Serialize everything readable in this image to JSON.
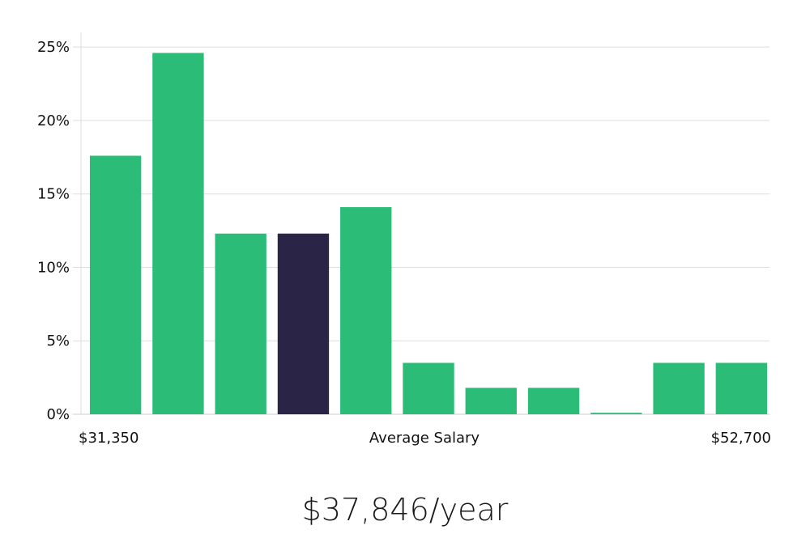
{
  "chart_data": {
    "type": "bar",
    "values": [
      17.6,
      24.6,
      12.3,
      12.3,
      14.1,
      3.5,
      1.8,
      1.8,
      0.1,
      3.5,
      3.5
    ],
    "highlight_index": 3,
    "ylim": [
      0,
      26
    ],
    "yticks": [
      0,
      5,
      10,
      15,
      20,
      25
    ],
    "ytick_labels": [
      "0%",
      "5%",
      "10%",
      "15%",
      "20%",
      "25%"
    ],
    "x_left_label": "$31,350",
    "x_center_label": "Average Salary",
    "x_right_label": "$52,700",
    "grid": true,
    "colors": {
      "bar": "#2bbd78",
      "highlight": "#2a2546",
      "grid": "#dddddd",
      "axis": "#cccccc"
    }
  },
  "average_salary": "$37,846/year"
}
